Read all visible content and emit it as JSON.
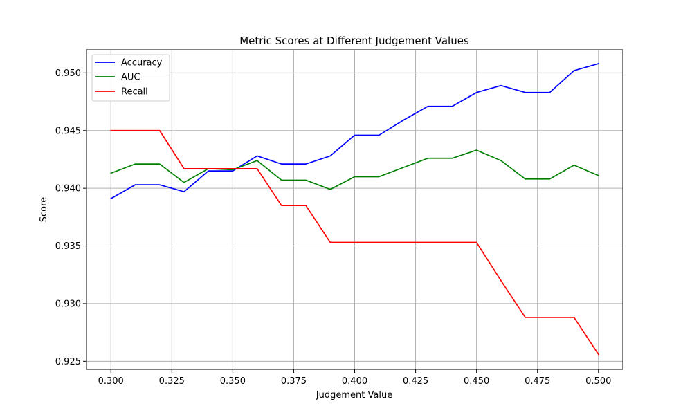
{
  "chart_data": {
    "type": "line",
    "title": "Metric Scores at Different Judgement Values",
    "xlabel": "Judgement Value",
    "ylabel": "Score",
    "xlim": [
      0.29,
      0.51
    ],
    "ylim": [
      0.9243,
      0.952
    ],
    "xticks": [
      "0.300",
      "0.325",
      "0.350",
      "0.375",
      "0.400",
      "0.425",
      "0.450",
      "0.475",
      "0.500"
    ],
    "xtick_values": [
      0.3,
      0.325,
      0.35,
      0.375,
      0.4,
      0.425,
      0.45,
      0.475,
      0.5
    ],
    "yticks": [
      "0.925",
      "0.930",
      "0.935",
      "0.940",
      "0.945",
      "0.950"
    ],
    "ytick_values": [
      0.925,
      0.93,
      0.935,
      0.94,
      0.945,
      0.95
    ],
    "grid": true,
    "legend_position": "top-left",
    "x": [
      0.3,
      0.31,
      0.32,
      0.33,
      0.34,
      0.35,
      0.36,
      0.37,
      0.38,
      0.39,
      0.4,
      0.41,
      0.42,
      0.43,
      0.44,
      0.45,
      0.46,
      0.47,
      0.48,
      0.49,
      0.5
    ],
    "series": [
      {
        "name": "Accuracy",
        "color": "#0000ff",
        "values": [
          0.9391,
          0.9403,
          0.9403,
          0.9397,
          0.9415,
          0.9415,
          0.9428,
          0.9421,
          0.9421,
          0.9428,
          0.9446,
          0.9446,
          0.9459,
          0.9471,
          0.9471,
          0.9483,
          0.9489,
          0.9483,
          0.9483,
          0.9502,
          0.9508
        ]
      },
      {
        "name": "AUC",
        "color": "#008000",
        "values": [
          0.9413,
          0.9421,
          0.9421,
          0.9405,
          0.9417,
          0.9416,
          0.9424,
          0.9407,
          0.9407,
          0.9399,
          0.941,
          0.941,
          0.9418,
          0.9426,
          0.9426,
          0.9433,
          0.9424,
          0.9408,
          0.9408,
          0.942,
          0.9411
        ]
      },
      {
        "name": "Recall",
        "color": "#ff0000",
        "values": [
          0.945,
          0.945,
          0.945,
          0.9417,
          0.9417,
          0.9417,
          0.9417,
          0.9385,
          0.9385,
          0.9353,
          0.9353,
          0.9353,
          0.9353,
          0.9353,
          0.9353,
          0.9353,
          0.932,
          0.9288,
          0.9288,
          0.9288,
          0.9256
        ]
      }
    ]
  }
}
